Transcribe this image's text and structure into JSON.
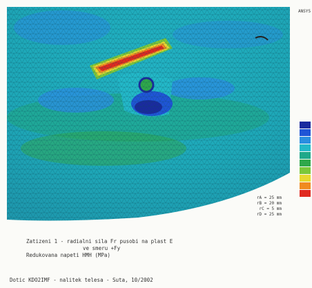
{
  "header": {
    "program": "ANSYS"
  },
  "legend": {
    "colors": [
      "#1a2a9e",
      "#1f55d6",
      "#2a8ee0",
      "#23b8c8",
      "#1fa88a",
      "#2fa84a",
      "#7cc83a",
      "#e8d830",
      "#f08a20",
      "#e02a20"
    ]
  },
  "dimensions": [
    "rA = 25 mm",
    "rB = 20 mm",
    "rC = 5 mm",
    "rD = 25 mm"
  ],
  "caption": {
    "line1": "Zatizeni 1 - radialni sila Fr pusobi na plast E",
    "line2": "ve smeru +Fy",
    "line3": "Redukovana napeti HMH (MPa)"
  },
  "footer": "Dotic KDO2IMF - nalitek telesa - Suta, 10/2002"
}
